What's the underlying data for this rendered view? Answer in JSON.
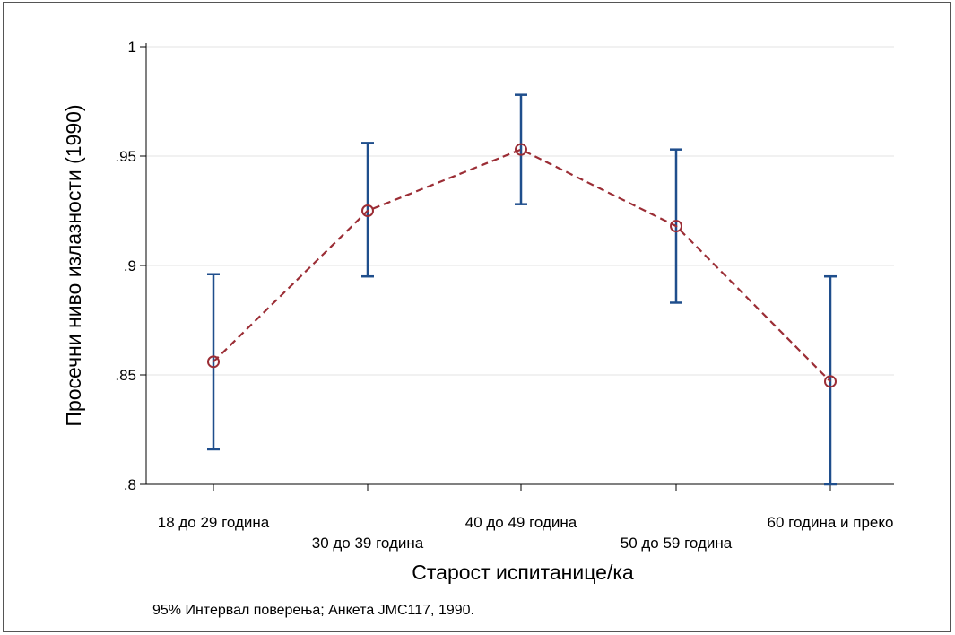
{
  "chart_data": {
    "type": "line",
    "title": "",
    "xlabel": "Старост испитанице/ка",
    "ylabel": "Просечни ниво излазности (1990)",
    "note": "95% Интервал поверења; Анкета JMC117, 1990.",
    "categories": [
      "18 до 29 година",
      "30 до 39 година",
      "40 до 49 година",
      "50 до 59 година",
      "60 година  и преко"
    ],
    "series": [
      {
        "values": [
          0.856,
          0.925,
          0.953,
          0.918,
          0.847
        ],
        "ci_lower": [
          0.816,
          0.895,
          0.928,
          0.883,
          0.8
        ],
        "ci_upper": [
          0.896,
          0.956,
          0.978,
          0.953,
          0.895
        ]
      }
    ],
    "yticks": [
      0.8,
      0.85,
      0.9,
      0.95,
      1
    ],
    "ytick_labels": [
      ".8",
      ".85",
      ".9",
      ".95",
      "1"
    ],
    "ylim": [
      0.8,
      1.0
    ],
    "grid": true,
    "colors": {
      "line": "#9b2d35",
      "errorbar": "#1f4e8c",
      "grid": "#e3e3e3"
    }
  }
}
